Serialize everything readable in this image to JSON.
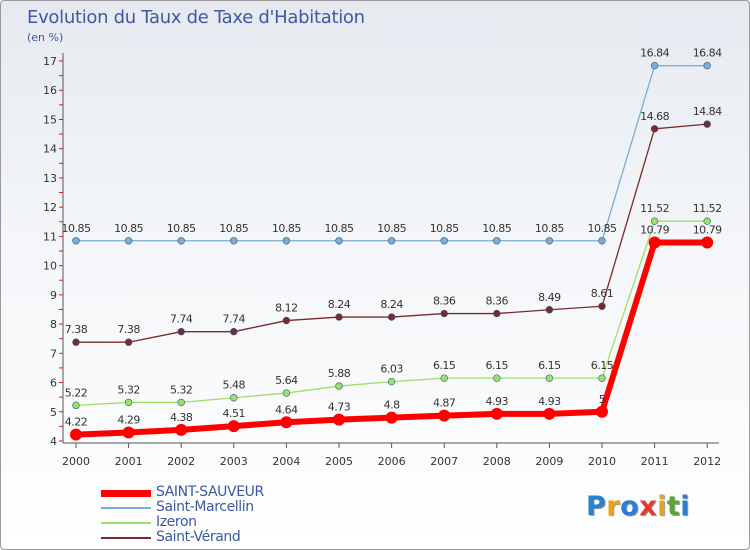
{
  "header": {
    "title": "Evolution du Taux de Taxe d'Habitation",
    "unit": "(en %)"
  },
  "logo": {
    "letters": [
      {
        "ch": "P",
        "color": "#2a7fd4"
      },
      {
        "ch": "r",
        "color": "#e8a316"
      },
      {
        "ch": "o",
        "color": "#2a7fd4"
      },
      {
        "ch": "x",
        "color": "#e23a2c"
      },
      {
        "ch": "i",
        "color": "#e8a316"
      },
      {
        "ch": "t",
        "color": "#5aa832"
      },
      {
        "ch": "i",
        "color": "#2a7fd4"
      }
    ]
  },
  "chart_data": {
    "type": "line",
    "title": "Evolution du Taux de Taxe d'Habitation",
    "subtitle": "(en %)",
    "x": [
      "2000",
      "2001",
      "2002",
      "2003",
      "2004",
      "2005",
      "2006",
      "2007",
      "2008",
      "2009",
      "2010",
      "2011",
      "2012"
    ],
    "ylim": [
      4,
      17
    ],
    "yticks": [
      4,
      5,
      6,
      7,
      8,
      9,
      10,
      11,
      12,
      13,
      14,
      15,
      16,
      17
    ],
    "grid": false,
    "legend_position": "bottom-left",
    "series": [
      {
        "name": "SAINT-SAUVEUR",
        "color": "#ff0000",
        "values": [
          4.22,
          4.29,
          4.38,
          4.51,
          4.64,
          4.73,
          4.8,
          4.87,
          4.93,
          4.93,
          5,
          10.79,
          10.79
        ],
        "labels": [
          "4.22",
          "4.29",
          "4.38",
          "4.51",
          "4.64",
          "4.73",
          "4.8",
          "4.87",
          "4.93",
          "4.93",
          "5",
          "10.79",
          "10.79"
        ]
      },
      {
        "name": "Saint-Marcellin",
        "color": "#7aaed6",
        "values": [
          10.85,
          10.85,
          10.85,
          10.85,
          10.85,
          10.85,
          10.85,
          10.85,
          10.85,
          10.85,
          10.85,
          16.84,
          16.84
        ],
        "labels": [
          "10.85",
          "10.85",
          "10.85",
          "10.85",
          "10.85",
          "10.85",
          "10.85",
          "10.85",
          "10.85",
          "10.85",
          "10.85",
          "16.84",
          "16.84"
        ]
      },
      {
        "name": "Izeron",
        "color": "#9ce06a",
        "values": [
          5.22,
          5.32,
          5.32,
          5.48,
          5.64,
          5.88,
          6.03,
          6.15,
          6.15,
          6.15,
          6.15,
          11.52,
          11.52
        ],
        "labels": [
          "5.22",
          "5.32",
          "5.32",
          "5.48",
          "5.64",
          "5.88",
          "6.03",
          "6.15",
          "6.15",
          "6.15",
          "6.15",
          "11.52",
          "11.52"
        ]
      },
      {
        "name": "Saint-Vérand",
        "color": "#7a2a2a",
        "values": [
          7.38,
          7.38,
          7.74,
          7.74,
          8.12,
          8.24,
          8.24,
          8.36,
          8.36,
          8.49,
          8.61,
          14.68,
          14.84
        ],
        "labels": [
          "7.38",
          "7.38",
          "7.74",
          "7.74",
          "8.12",
          "8.24",
          "8.24",
          "8.36",
          "8.36",
          "8.49",
          "8.61",
          "14.68",
          "14.84"
        ]
      }
    ]
  }
}
